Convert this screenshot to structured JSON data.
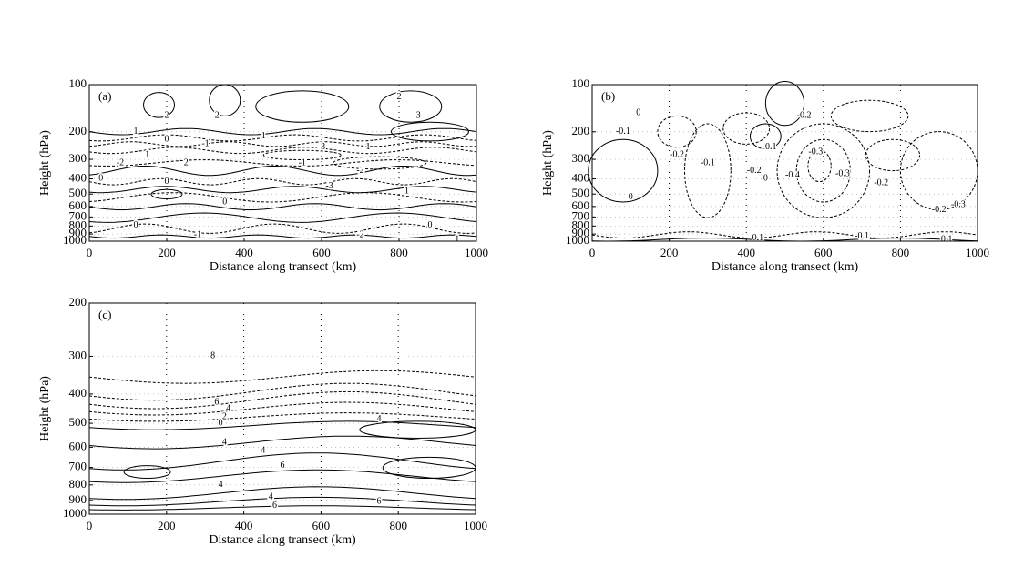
{
  "chart_data": [
    {
      "type": "contour",
      "panel_label": "(a)",
      "xlabel": "Distance along transect (km)",
      "ylabel": "Height (hPa)",
      "xlim": [
        0,
        1000
      ],
      "xticks": [
        0,
        200,
        400,
        600,
        800,
        1000
      ],
      "ylim": [
        1000,
        100
      ],
      "yticks": [
        100,
        200,
        300,
        400,
        500,
        600,
        700,
        800,
        900,
        1000
      ],
      "log_y": true,
      "grid": true,
      "contour_labels": [
        "1",
        "2",
        "2",
        "1",
        "2",
        "3",
        "1",
        "0",
        "-1",
        "-3",
        "1",
        "-2",
        "0",
        "2",
        "-1",
        "-2",
        "-3",
        "0",
        "1",
        "0",
        "0",
        "-1",
        "-2",
        "0",
        "1"
      ]
    },
    {
      "type": "contour",
      "panel_label": "(b)",
      "xlabel": "Distance along transect (km)",
      "ylabel": "Height (hPa)",
      "xlim": [
        0,
        1000
      ],
      "xticks": [
        0,
        200,
        400,
        600,
        800,
        1000
      ],
      "ylim": [
        1000,
        100
      ],
      "yticks": [
        100,
        200,
        300,
        400,
        500,
        600,
        700,
        800,
        900,
        1000
      ],
      "log_y": true,
      "grid": true,
      "contour_labels": [
        "0",
        "-0.1",
        "-0.2",
        "-0.1",
        "-0.2",
        "-0.1",
        "0.1",
        "0",
        "-0.2",
        "-0.3",
        "-0.4",
        "-0.3",
        "-0.2",
        "-0.3",
        "-0.1",
        "0.1",
        "-0.2",
        "0"
      ]
    },
    {
      "type": "contour",
      "panel_label": "(c)",
      "xlabel": "Distance along transect (km)",
      "ylabel": "Height (hPa)",
      "xlim": [
        0,
        1000
      ],
      "xticks": [
        0,
        200,
        400,
        600,
        800,
        1000
      ],
      "ylim": [
        1000,
        200
      ],
      "yticks": [
        200,
        300,
        400,
        500,
        600,
        700,
        800,
        900,
        1000
      ],
      "log_y": true,
      "grid": true,
      "contour_labels": [
        "8",
        "6",
        "4",
        "2",
        "0",
        "4",
        "4",
        "4",
        "6",
        "4",
        "6",
        "6",
        "4"
      ]
    }
  ]
}
